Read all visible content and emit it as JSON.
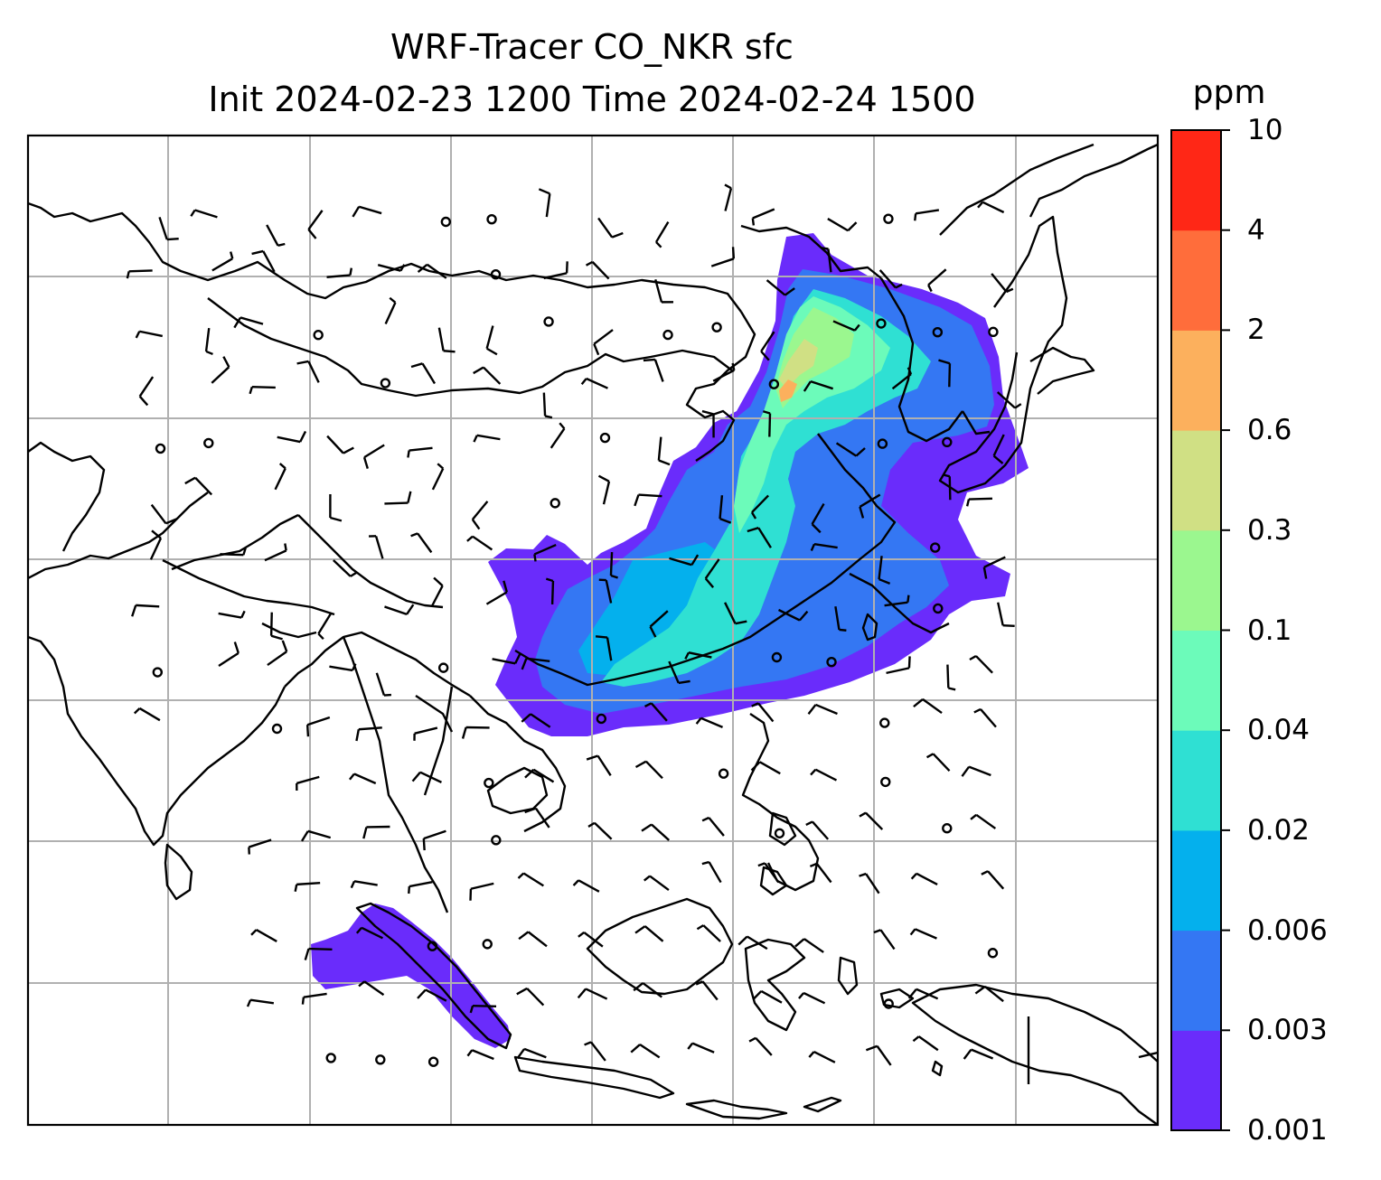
{
  "title": {
    "line1": "WRF-Tracer CO_NKR sfc",
    "line2": "Init 2024-02-23 1200 Time 2024-02-24 1500"
  },
  "colorbar": {
    "unit": "ppm",
    "levels": [
      "0.001",
      "0.003",
      "0.006",
      "0.02",
      "0.04",
      "0.1",
      "0.3",
      "0.6",
      "2",
      "4",
      "10"
    ],
    "colors": [
      "#6a2cfb",
      "#3477f3",
      "#04b0ed",
      "#2fe0d3",
      "#6cfbba",
      "#9bf78f",
      "#d0e084",
      "#fcb05d",
      "#ff6d3b",
      "#ff2716"
    ]
  },
  "map": {
    "field": "CO_NKR tracer concentration at surface",
    "overlay": "wind barbs",
    "gridlines": true,
    "frame_color": "#000000",
    "gridline_color": "#b0b0b0"
  }
}
